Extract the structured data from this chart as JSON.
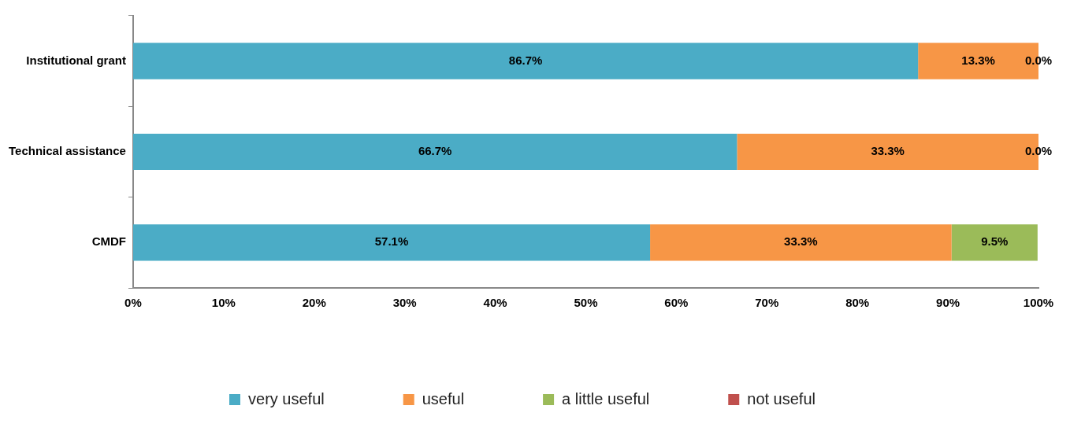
{
  "chart_data": {
    "type": "bar",
    "orientation": "horizontal",
    "stacked": true,
    "categories": [
      "Institutional grant",
      "Technical assistance",
      "CMDF"
    ],
    "series": [
      {
        "name": "very useful",
        "color": "#4bacc6",
        "values": [
          86.7,
          66.7,
          57.1
        ],
        "value_labels": [
          "86.7%",
          "66.7%",
          "57.1%"
        ]
      },
      {
        "name": "useful",
        "color": "#f79646",
        "values": [
          13.3,
          33.3,
          33.3
        ],
        "value_labels": [
          "13.3%",
          "33.3%",
          "33.3%"
        ]
      },
      {
        "name": "a little useful",
        "color": "#9bbb59",
        "values": [
          0.0,
          0.0,
          9.5
        ],
        "value_labels": [
          "0.0%",
          "0.0%",
          "9.5%"
        ]
      },
      {
        "name": "not useful",
        "color": "#c0504d",
        "values": [
          0,
          0,
          0
        ],
        "value_labels": [
          null,
          null,
          null
        ]
      }
    ],
    "xlim": [
      0,
      100
    ],
    "xticks": [
      {
        "value": 0,
        "label": "0%"
      },
      {
        "value": 10,
        "label": "10%"
      },
      {
        "value": 20,
        "label": "20%"
      },
      {
        "value": 30,
        "label": "30%"
      },
      {
        "value": 40,
        "label": "40%"
      },
      {
        "value": 50,
        "label": "50%"
      },
      {
        "value": 60,
        "label": "60%"
      },
      {
        "value": 70,
        "label": "70%"
      },
      {
        "value": 80,
        "label": "80%"
      },
      {
        "value": 90,
        "label": "90%"
      },
      {
        "value": 100,
        "label": "100%"
      }
    ],
    "grid": false,
    "legend": "bottom"
  }
}
